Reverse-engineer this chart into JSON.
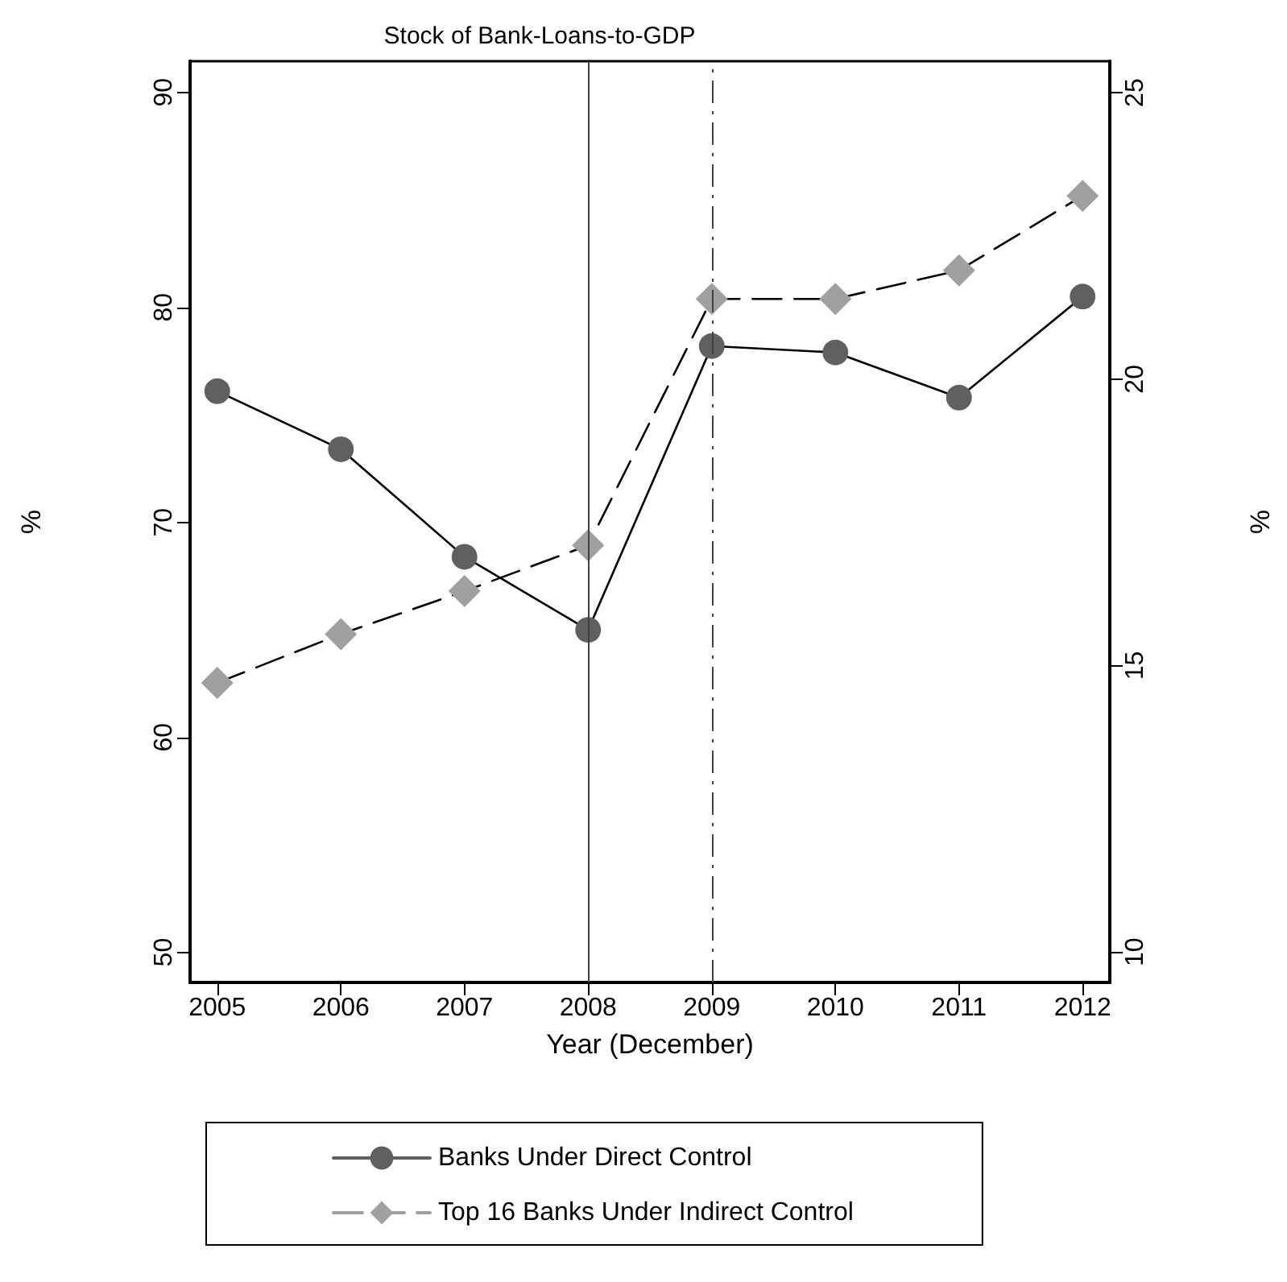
{
  "chart_data": {
    "type": "line",
    "title": "Stock of Bank-Loans-to-GDP",
    "xlabel": "Year (December)",
    "ylabel": "%",
    "y2label": "%",
    "x": [
      2005,
      2006,
      2007,
      2008,
      2009,
      2010,
      2011,
      2012
    ],
    "xlim": [
      2004.78,
      2012.22
    ],
    "xticks": [
      2005,
      2006,
      2007,
      2008,
      2009,
      2010,
      2011,
      2012
    ],
    "ylim": [
      48.6,
      91.45
    ],
    "yticks": [
      50,
      60,
      70,
      80,
      90
    ],
    "y2lim": [
      9.47,
      25.55
    ],
    "y2ticks": [
      10,
      15,
      20,
      25
    ],
    "series": [
      {
        "name": "Banks Under Direct Control",
        "color": "#606060",
        "marker": "circle",
        "line_style": "solid",
        "values": [
          76.1,
          73.4,
          68.4,
          65.0,
          78.2,
          77.9,
          75.8,
          80.5
        ]
      },
      {
        "name": "Top 16 Banks Under Indirect Control",
        "color": "#a0a0a0",
        "marker": "diamond",
        "line_style": "dashed",
        "axis": "y2",
        "values": [
          14.7,
          15.55,
          16.3,
          17.1,
          21.4,
          21.4,
          21.9,
          23.2
        ]
      }
    ],
    "ref_lines": [
      {
        "axis": "x",
        "value": 2008,
        "line_style": "solid",
        "color": "#404040"
      },
      {
        "axis": "x",
        "value": 2009,
        "line_style": "dashed",
        "color": "#404040"
      }
    ],
    "grid": false,
    "legend": "bottom"
  }
}
